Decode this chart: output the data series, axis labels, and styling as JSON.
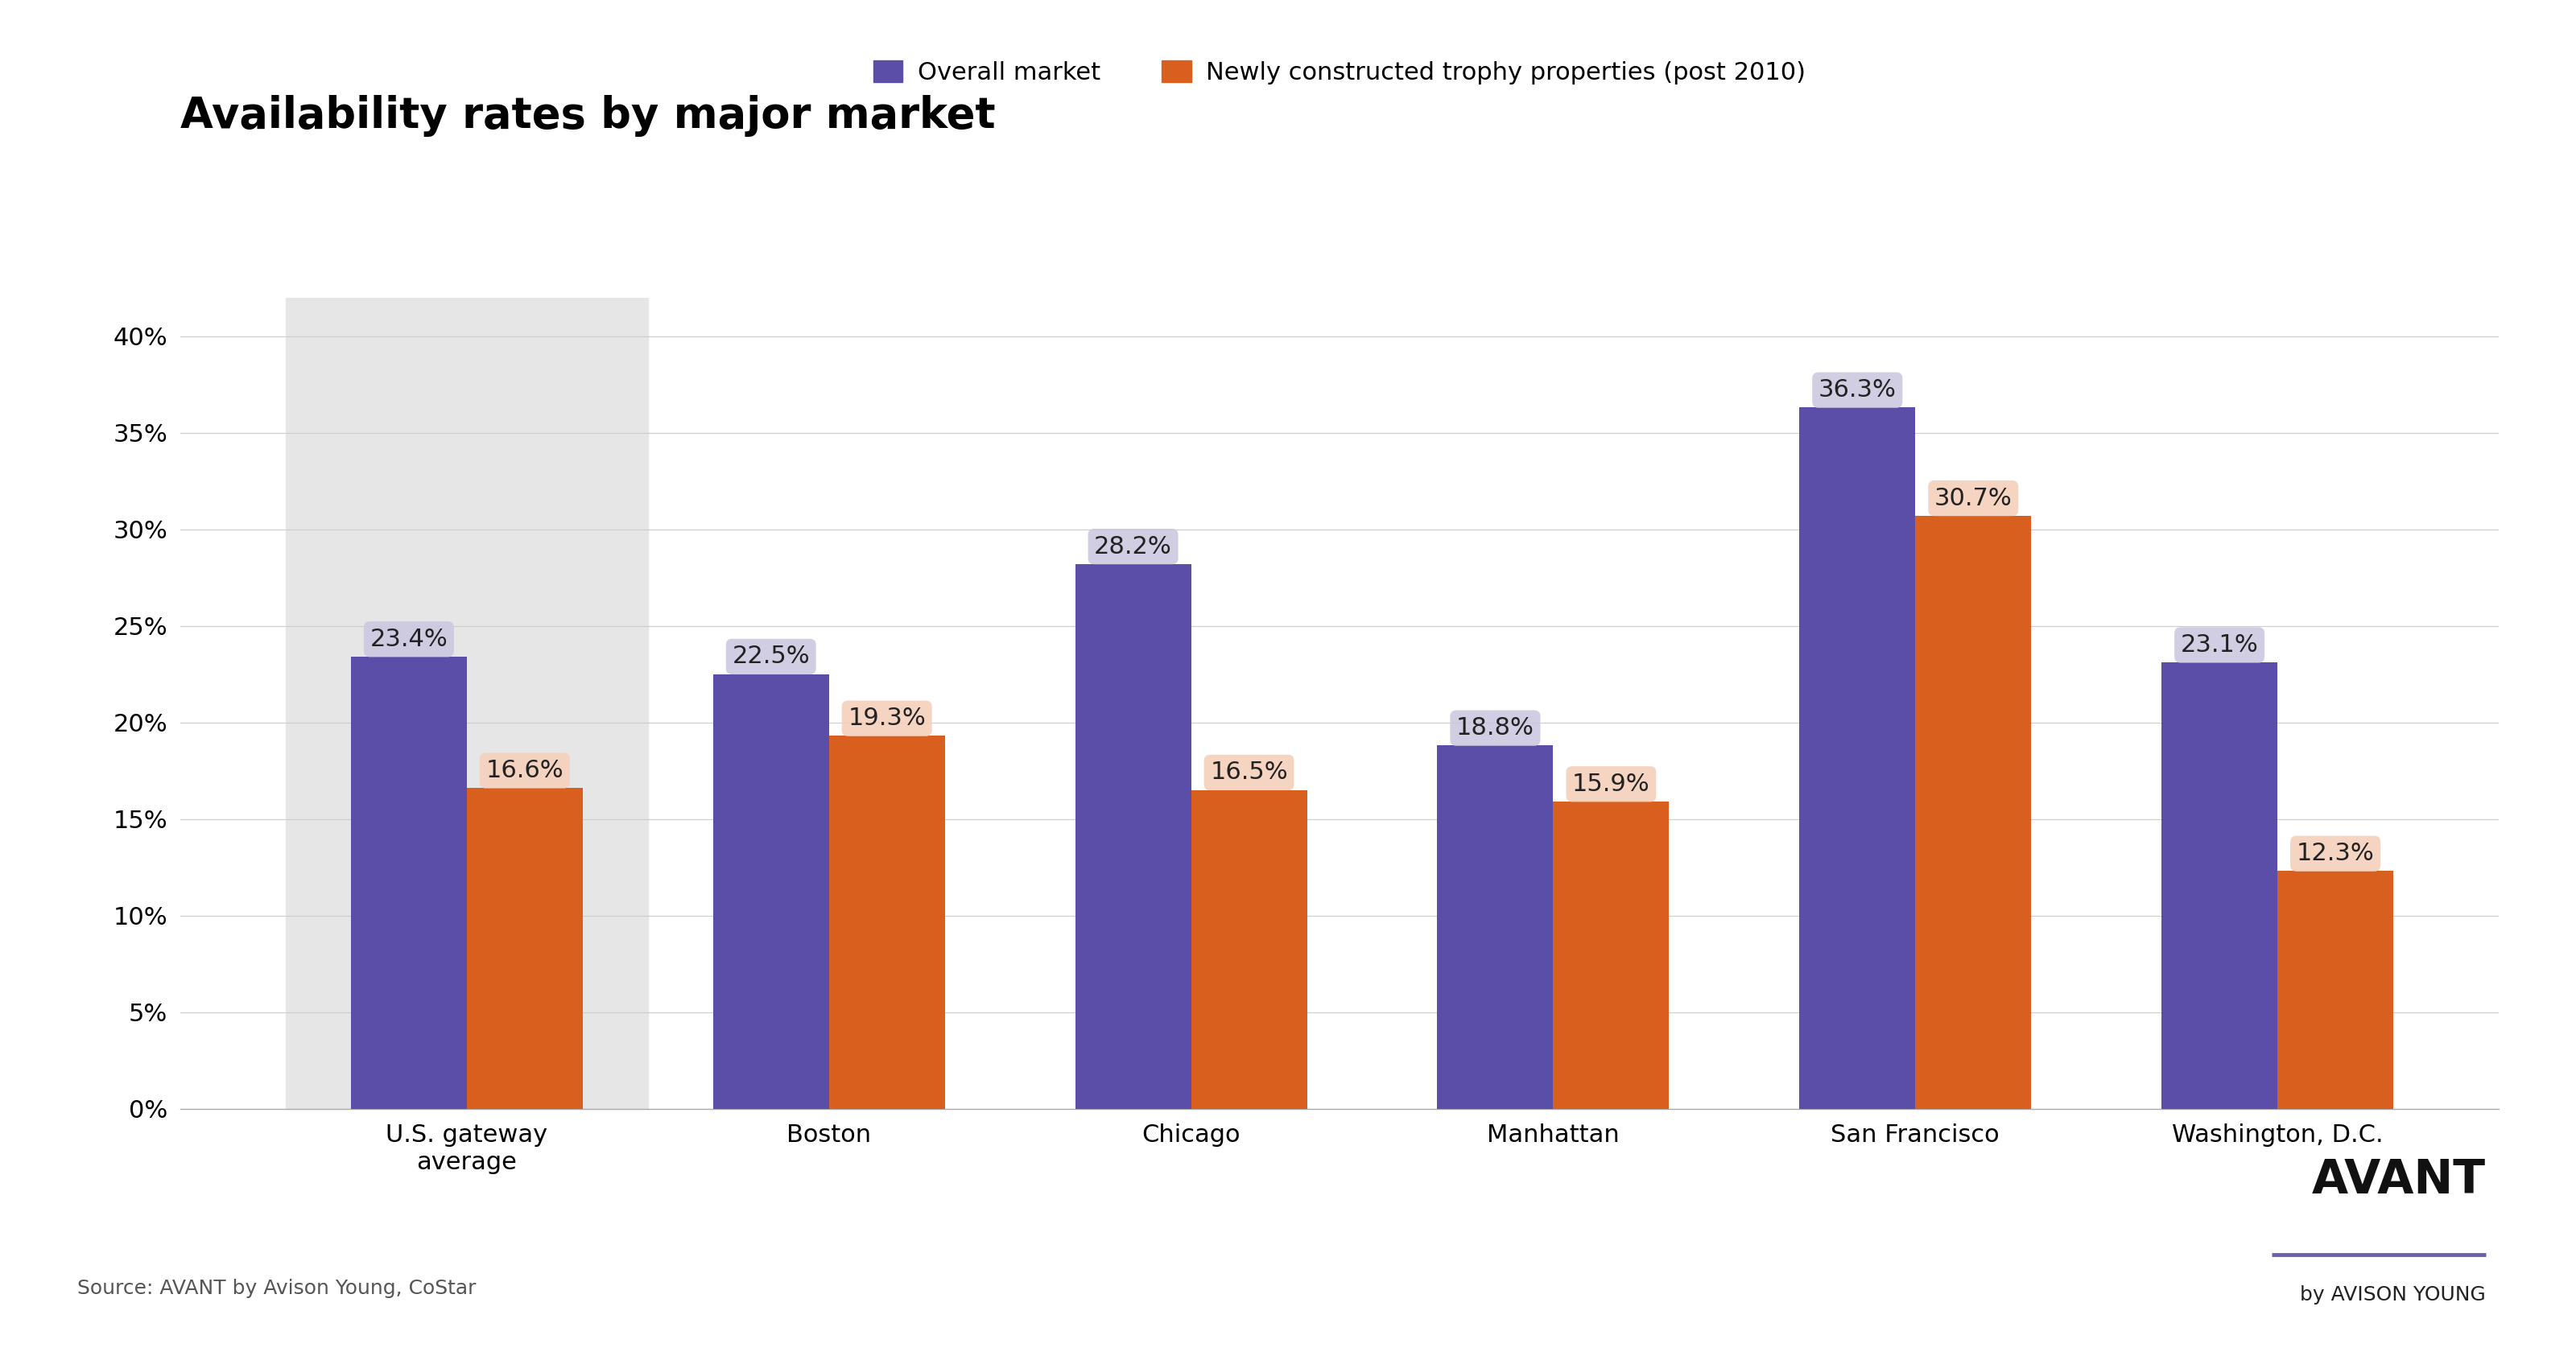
{
  "title": "Availability rates by major market",
  "categories": [
    "U.S. gateway\naverage",
    "Boston",
    "Chicago",
    "Manhattan",
    "San Francisco",
    "Washington, D.C."
  ],
  "overall_market": [
    23.4,
    22.5,
    28.2,
    18.8,
    36.3,
    23.1
  ],
  "trophy_properties": [
    16.6,
    19.3,
    16.5,
    15.9,
    30.7,
    12.3
  ],
  "overall_color": "#5b4ea8",
  "trophy_color": "#d95f1e",
  "overall_label": "Overall market",
  "trophy_label": "Newly constructed trophy properties (post 2010)",
  "ylim": [
    0,
    42
  ],
  "yticks": [
    0,
    5,
    10,
    15,
    20,
    25,
    30,
    35,
    40
  ],
  "source_text": "Source: AVANT by Avison Young, CoStar",
  "background_color": "#ffffff",
  "first_bar_bg": "#e6e6e6",
  "label_fontsize": 22,
  "title_fontsize": 38,
  "tick_fontsize": 22,
  "legend_fontsize": 22,
  "bar_width": 0.32,
  "overall_label_bg": "#ccc8e0",
  "trophy_label_bg": "#f5d0bc",
  "avant_color": "#111111",
  "avant_line_color": "#6b5fad",
  "source_fontsize": 18,
  "avant_fontsize": 42,
  "avison_fontsize": 18
}
